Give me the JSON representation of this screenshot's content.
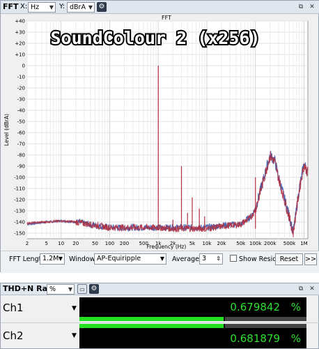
{
  "fft": {
    "toolbar": {
      "title": "FFT",
      "x_label": "X:",
      "x_unit": "Hz",
      "y_label": "Y:",
      "y_unit": "dBrA",
      "gear_icon": "gear-icon",
      "restore_icon": "restore-icon",
      "close_icon": "close-icon"
    },
    "graph_title": "FFT",
    "overlay_text": "SoundColour 2 (x256)",
    "y_axis_label": "Level (dBrA)",
    "x_axis_label": "Frequency (Hz)",
    "y_ticks": [
      "+40",
      "+30",
      "+20",
      "+10",
      "0",
      "-10",
      "-20",
      "-30",
      "-40",
      "-50",
      "-60",
      "-70",
      "-80",
      "-90",
      "-100",
      "-110",
      "-120",
      "-130",
      "-140",
      "-150"
    ],
    "x_ticks": [
      "2",
      "5",
      "10",
      "20",
      "50",
      "100",
      "200",
      "500",
      "1k",
      "2k",
      "5k",
      "10k",
      "20k",
      "50k",
      "100k",
      "200k",
      "500k",
      "1M"
    ],
    "bottom": {
      "fft_length_label": "FFT Length:",
      "fft_length_value": "1.2M",
      "window_label": "Window:",
      "window_value": "AP-Equiripple",
      "averages_label": "Averages:",
      "averages_value": "3",
      "show_residual_label": "Show Residual",
      "reset_label": "Reset",
      "more_label": ">>"
    }
  },
  "thd": {
    "toolbar": {
      "title": "THD+N Ratio",
      "unit": "%",
      "meter_icon": "meter-icon",
      "gear_icon": "gear-icon",
      "restore_icon": "restore-icon",
      "close_icon": "close-icon"
    },
    "channels": [
      {
        "label": "Ch1",
        "value": "0.679842",
        "unit": "%",
        "level": 0.64
      },
      {
        "label": "Ch2",
        "value": "0.681879",
        "unit": "%",
        "level": 0.64
      }
    ]
  },
  "chart_data": {
    "type": "line",
    "title": "FFT",
    "xlabel": "Frequency (Hz)",
    "ylabel": "Level (dBrA)",
    "xscale": "log",
    "xlim": [
      2,
      1200000
    ],
    "ylim": [
      -155,
      40
    ],
    "grid": true,
    "series": [
      {
        "name": "Ch1",
        "color": "#2b4aa8",
        "x": [
          2,
          5,
          10,
          20,
          50,
          100,
          200,
          500,
          1000,
          2000,
          5000,
          10000,
          20000,
          50000,
          80000,
          100000,
          150000,
          200000,
          250000,
          300000,
          400000,
          500000,
          600000,
          800000,
          1000000,
          1200000
        ],
        "y": [
          -142,
          -140,
          -139,
          -140,
          -143,
          -145,
          -145,
          -145,
          0,
          -145,
          -145,
          -145,
          -143,
          -142,
          -135,
          -128,
          -100,
          -80,
          -85,
          -100,
          -120,
          -135,
          -150,
          -110,
          -88,
          -95
        ]
      },
      {
        "name": "Ch2",
        "color": "#b03040",
        "x": [
          2,
          5,
          10,
          20,
          50,
          100,
          200,
          500,
          1000,
          2000,
          5000,
          10000,
          20000,
          50000,
          80000,
          100000,
          150000,
          200000,
          250000,
          300000,
          400000,
          500000,
          600000,
          800000,
          1000000,
          1200000
        ],
        "y": [
          -141,
          -140,
          -139,
          -140,
          -143,
          -145,
          -145,
          -145,
          0,
          -146,
          -146,
          -146,
          -144,
          -142,
          -136,
          -129,
          -101,
          -81,
          -86,
          -101,
          -121,
          -136,
          -150,
          -111,
          -89,
          -96
        ]
      }
    ],
    "spurs": [
      {
        "x": 1000,
        "y": 0
      },
      {
        "x": 2000,
        "y": -138
      },
      {
        "x": 3000,
        "y": -90
      },
      {
        "x": 4000,
        "y": -132
      },
      {
        "x": 5000,
        "y": -118
      },
      {
        "x": 7000,
        "y": -128
      },
      {
        "x": 9000,
        "y": -135
      },
      {
        "x": 100000,
        "y": -100
      }
    ]
  }
}
